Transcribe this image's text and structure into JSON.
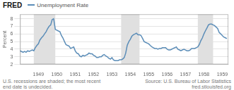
{
  "chart_data": {
    "type": "line",
    "title": "Unemployment Rate",
    "ylabel": "Percent",
    "annotations": [
      "FRED",
      "U.S. recessions are shaded; the most recent\nend date is undecided.",
      "Source: U.S. Bureau of Labor Statistics",
      "fred.stlouisfed.org"
    ],
    "x": [
      1948.0,
      1948.08,
      1948.17,
      1948.25,
      1948.33,
      1948.42,
      1948.5,
      1948.58,
      1948.67,
      1948.75,
      1948.83,
      1948.92,
      1949.0,
      1949.08,
      1949.17,
      1949.25,
      1949.33,
      1949.42,
      1949.5,
      1949.58,
      1949.67,
      1949.75,
      1949.83,
      1949.92,
      1950.0,
      1950.08,
      1950.17,
      1950.25,
      1950.33,
      1950.42,
      1950.5,
      1950.58,
      1950.67,
      1950.75,
      1950.83,
      1950.92,
      1951.0,
      1951.08,
      1951.17,
      1951.25,
      1951.33,
      1951.42,
      1951.5,
      1951.58,
      1951.67,
      1951.75,
      1951.83,
      1951.92,
      1952.0,
      1952.08,
      1952.17,
      1952.25,
      1952.33,
      1952.42,
      1952.5,
      1952.58,
      1952.67,
      1952.75,
      1952.83,
      1952.92,
      1953.0,
      1953.08,
      1953.17,
      1953.25,
      1953.33,
      1953.42,
      1953.5,
      1953.58,
      1953.67,
      1953.75,
      1953.83,
      1953.92,
      1954.0,
      1954.08,
      1954.17,
      1954.25,
      1954.33,
      1954.42,
      1954.5,
      1954.58,
      1954.67,
      1954.75,
      1954.83,
      1954.92,
      1955.0,
      1955.08,
      1955.17,
      1955.25,
      1955.33,
      1955.42,
      1955.5,
      1955.58,
      1955.67,
      1955.75,
      1955.83,
      1955.92,
      1956.0,
      1956.08,
      1956.17,
      1956.25,
      1956.33,
      1956.42,
      1956.5,
      1956.58,
      1956.67,
      1956.75,
      1956.83,
      1956.92,
      1957.0,
      1957.08,
      1957.17,
      1957.25,
      1957.33,
      1957.42,
      1957.5,
      1957.58,
      1957.67,
      1957.75,
      1957.83,
      1957.92,
      1958.0,
      1958.08,
      1958.17,
      1958.25,
      1958.33,
      1958.42,
      1958.5,
      1958.58,
      1958.67,
      1958.75,
      1958.83,
      1958.92,
      1959.0,
      1959.08,
      1959.17,
      1959.25
    ],
    "values": [
      3.8,
      3.7,
      3.6,
      3.7,
      3.6,
      3.8,
      3.7,
      3.8,
      3.9,
      3.8,
      4.2,
      4.5,
      4.7,
      5.2,
      5.5,
      5.7,
      6.0,
      6.3,
      6.7,
      7.0,
      7.2,
      7.9,
      8.0,
      6.6,
      6.5,
      6.4,
      6.3,
      5.8,
      5.5,
      5.0,
      4.6,
      4.5,
      4.4,
      4.1,
      4.2,
      4.3,
      3.8,
      3.5,
      3.4,
      3.1,
      3.0,
      3.2,
      3.1,
      3.2,
      3.3,
      3.5,
      3.4,
      3.4,
      3.2,
      3.1,
      2.9,
      2.9,
      3.0,
      3.0,
      3.2,
      3.3,
      3.1,
      3.0,
      2.8,
      2.7,
      2.9,
      2.6,
      2.5,
      2.5,
      2.5,
      2.6,
      2.6,
      2.7,
      2.9,
      3.5,
      4.5,
      5.0,
      5.3,
      5.7,
      5.9,
      6.0,
      6.1,
      5.9,
      5.9,
      5.8,
      5.4,
      5.0,
      4.9,
      4.8,
      4.7,
      4.5,
      4.3,
      4.2,
      4.1,
      4.1,
      4.0,
      4.1,
      4.1,
      4.2,
      4.2,
      4.2,
      4.0,
      3.9,
      3.9,
      4.0,
      4.1,
      4.2,
      4.3,
      4.0,
      3.9,
      3.8,
      3.9,
      4.0,
      3.9,
      3.8,
      3.8,
      3.9,
      4.1,
      4.1,
      4.1,
      4.2,
      4.3,
      4.6,
      5.1,
      5.5,
      6.0,
      6.4,
      6.8,
      7.2,
      7.3,
      7.3,
      7.2,
      7.1,
      6.9,
      6.7,
      6.2,
      6.0,
      5.8,
      5.6,
      5.5,
      5.4
    ],
    "color": "#5b8db8",
    "xlim": [
      1948.0,
      1959.33
    ],
    "xticks": [
      1949,
      1950,
      1951,
      1952,
      1953,
      1954,
      1955,
      1956,
      1957,
      1958,
      1959
    ],
    "ylim": [
      2.0,
      8.6
    ],
    "yticks": [
      2,
      3,
      4,
      5,
      6,
      7,
      8
    ],
    "grid": "y",
    "recession_bands": {
      "color": "#e0e0e0",
      "ranges": [
        [
          1948.75,
          1949.92
        ],
        [
          1953.5,
          1954.5
        ],
        [
          1957.67,
          1958.5
        ]
      ]
    }
  }
}
